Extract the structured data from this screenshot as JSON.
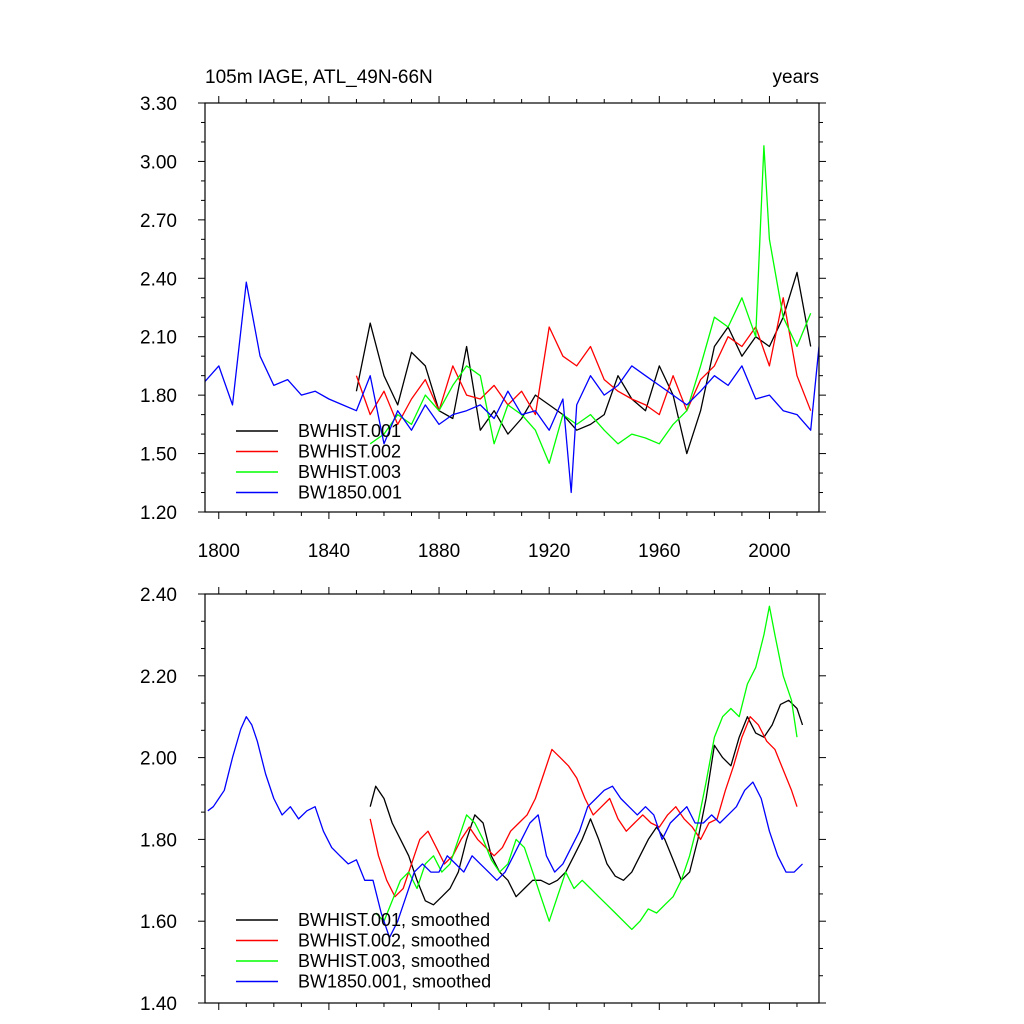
{
  "chart_data": [
    {
      "type": "line",
      "title": "105m IAGE, ATL_49N-66N",
      "units": "years",
      "xlim": [
        1795,
        2018
      ],
      "ylim": [
        1.2,
        3.3
      ],
      "xticks": [
        1800,
        1840,
        1880,
        1920,
        1960,
        2000
      ],
      "yticks": [
        1.2,
        1.5,
        1.8,
        2.1,
        2.4,
        2.7,
        3.0,
        3.3
      ],
      "xtick_labels": [
        "1800",
        "1840",
        "1880",
        "1920",
        "1960",
        "2000"
      ],
      "ytick_labels": [
        "1.20",
        "1.50",
        "1.80",
        "2.10",
        "2.40",
        "2.70",
        "3.00",
        "3.30"
      ],
      "legend": [
        "BWHIST.001",
        "BWHIST.002",
        "BWHIST.003",
        "BW1850.001"
      ],
      "series": [
        {
          "name": "BWHIST.001",
          "color": "#000000",
          "x": [
            1850,
            1855,
            1860,
            1865,
            1870,
            1875,
            1880,
            1885,
            1890,
            1895,
            1900,
            1905,
            1910,
            1915,
            1920,
            1925,
            1930,
            1935,
            1940,
            1945,
            1950,
            1955,
            1960,
            1965,
            1970,
            1975,
            1980,
            1985,
            1990,
            1995,
            2000,
            2005,
            2010,
            2015
          ],
          "values": [
            1.82,
            2.17,
            1.9,
            1.75,
            2.02,
            1.95,
            1.72,
            1.68,
            2.05,
            1.62,
            1.72,
            1.6,
            1.68,
            1.8,
            1.75,
            1.7,
            1.62,
            1.65,
            1.7,
            1.9,
            1.78,
            1.72,
            1.95,
            1.8,
            1.5,
            1.72,
            2.05,
            2.15,
            2.0,
            2.1,
            2.05,
            2.2,
            2.43,
            2.05
          ]
        },
        {
          "name": "BWHIST.002",
          "color": "#ff0000",
          "x": [
            1850,
            1855,
            1860,
            1865,
            1870,
            1875,
            1880,
            1885,
            1890,
            1895,
            1900,
            1905,
            1910,
            1915,
            1920,
            1925,
            1930,
            1935,
            1940,
            1945,
            1950,
            1955,
            1960,
            1965,
            1970,
            1975,
            1980,
            1985,
            1990,
            1995,
            2000,
            2005,
            2010,
            2015
          ],
          "values": [
            1.9,
            1.7,
            1.82,
            1.65,
            1.78,
            1.88,
            1.72,
            1.95,
            1.8,
            1.78,
            1.85,
            1.75,
            1.82,
            1.7,
            2.15,
            2.0,
            1.95,
            2.05,
            1.88,
            1.82,
            1.78,
            1.75,
            1.7,
            1.9,
            1.72,
            1.88,
            1.95,
            2.1,
            2.05,
            2.15,
            1.95,
            2.3,
            1.9,
            1.72
          ]
        },
        {
          "name": "BWHIST.003",
          "color": "#00ff00",
          "x": [
            1855,
            1860,
            1865,
            1870,
            1875,
            1880,
            1885,
            1890,
            1895,
            1900,
            1905,
            1910,
            1915,
            1920,
            1925,
            1930,
            1935,
            1940,
            1945,
            1950,
            1955,
            1960,
            1965,
            1970,
            1975,
            1980,
            1985,
            1990,
            1995,
            1998,
            2000,
            2005,
            2010,
            2015
          ],
          "values": [
            1.55,
            1.6,
            1.7,
            1.65,
            1.8,
            1.72,
            1.85,
            1.95,
            1.9,
            1.55,
            1.75,
            1.7,
            1.62,
            1.45,
            1.7,
            1.65,
            1.7,
            1.62,
            1.55,
            1.6,
            1.58,
            1.55,
            1.65,
            1.72,
            1.95,
            2.2,
            2.15,
            2.3,
            2.1,
            3.08,
            2.6,
            2.2,
            2.05,
            2.22
          ]
        },
        {
          "name": "BW1850.001",
          "color": "#0000ff",
          "x": [
            1795,
            1800,
            1805,
            1810,
            1815,
            1820,
            1825,
            1830,
            1835,
            1840,
            1845,
            1850,
            1855,
            1860,
            1865,
            1870,
            1875,
            1880,
            1885,
            1890,
            1895,
            1900,
            1905,
            1910,
            1915,
            1920,
            1925,
            1928,
            1930,
            1935,
            1940,
            1945,
            1950,
            1955,
            1960,
            1965,
            1970,
            1975,
            1980,
            1985,
            1990,
            1995,
            2000,
            2005,
            2010,
            2015,
            2018
          ],
          "values": [
            1.87,
            1.95,
            1.75,
            2.38,
            2.0,
            1.85,
            1.88,
            1.8,
            1.82,
            1.78,
            1.75,
            1.72,
            1.9,
            1.55,
            1.72,
            1.62,
            1.75,
            1.65,
            1.7,
            1.72,
            1.75,
            1.68,
            1.82,
            1.7,
            1.72,
            1.62,
            1.78,
            1.3,
            1.75,
            1.9,
            1.8,
            1.85,
            1.95,
            1.9,
            1.85,
            1.8,
            1.75,
            1.82,
            1.9,
            1.85,
            1.95,
            1.78,
            1.8,
            1.72,
            1.7,
            1.62,
            2.05
          ]
        }
      ]
    },
    {
      "type": "line",
      "xlim": [
        1795,
        2018
      ],
      "ylim": [
        1.4,
        2.4
      ],
      "xticks": [
        1800,
        1840,
        1880,
        1920,
        1960,
        2000
      ],
      "yticks": [
        1.4,
        1.6,
        1.8,
        2.0,
        2.2,
        2.4
      ],
      "ytick_labels": [
        "1.40",
        "1.60",
        "1.80",
        "2.00",
        "2.20",
        "2.40"
      ],
      "legend": [
        "BWHIST.001, smoothed",
        "BWHIST.002, smoothed",
        "BWHIST.003, smoothed",
        "BW1850.001, smoothed"
      ],
      "series": [
        {
          "name": "BWHIST.001, smoothed",
          "color": "#000000",
          "x": [
            1855,
            1857,
            1860,
            1863,
            1866,
            1869,
            1872,
            1875,
            1878,
            1881,
            1884,
            1887,
            1890,
            1893,
            1896,
            1899,
            1902,
            1905,
            1908,
            1911,
            1914,
            1917,
            1920,
            1923,
            1926,
            1929,
            1932,
            1935,
            1938,
            1941,
            1944,
            1947,
            1950,
            1953,
            1956,
            1959,
            1962,
            1965,
            1968,
            1971,
            1974,
            1977,
            1980,
            1983,
            1986,
            1989,
            1992,
            1995,
            1998,
            2001,
            2004,
            2007,
            2010,
            2012
          ],
          "values": [
            1.88,
            1.93,
            1.9,
            1.84,
            1.8,
            1.76,
            1.7,
            1.65,
            1.64,
            1.66,
            1.68,
            1.72,
            1.8,
            1.86,
            1.84,
            1.76,
            1.72,
            1.7,
            1.66,
            1.68,
            1.7,
            1.7,
            1.69,
            1.7,
            1.72,
            1.76,
            1.8,
            1.85,
            1.8,
            1.74,
            1.71,
            1.7,
            1.72,
            1.76,
            1.8,
            1.83,
            1.8,
            1.75,
            1.7,
            1.72,
            1.8,
            1.9,
            2.03,
            2.0,
            1.98,
            2.05,
            2.1,
            2.06,
            2.05,
            2.08,
            2.13,
            2.14,
            2.12,
            2.08
          ]
        },
        {
          "name": "BWHIST.002, smoothed",
          "color": "#ff0000",
          "x": [
            1855,
            1858,
            1861,
            1864,
            1867,
            1870,
            1873,
            1876,
            1879,
            1882,
            1885,
            1888,
            1891,
            1894,
            1897,
            1900,
            1903,
            1906,
            1909,
            1912,
            1915,
            1918,
            1921,
            1924,
            1927,
            1930,
            1933,
            1936,
            1939,
            1942,
            1945,
            1948,
            1951,
            1954,
            1957,
            1960,
            1963,
            1966,
            1969,
            1972,
            1975,
            1978,
            1981,
            1984,
            1987,
            1990,
            1993,
            1996,
            1999,
            2002,
            2005,
            2008,
            2010
          ],
          "values": [
            1.85,
            1.76,
            1.7,
            1.66,
            1.68,
            1.74,
            1.8,
            1.82,
            1.78,
            1.74,
            1.76,
            1.8,
            1.83,
            1.8,
            1.78,
            1.76,
            1.78,
            1.82,
            1.84,
            1.86,
            1.9,
            1.96,
            2.02,
            2.0,
            1.98,
            1.95,
            1.9,
            1.86,
            1.88,
            1.9,
            1.85,
            1.82,
            1.84,
            1.86,
            1.84,
            1.83,
            1.86,
            1.88,
            1.85,
            1.83,
            1.8,
            1.84,
            1.85,
            1.92,
            1.98,
            2.05,
            2.1,
            2.08,
            2.04,
            2.02,
            1.97,
            1.92,
            1.88
          ]
        },
        {
          "name": "BWHIST.003, smoothed",
          "color": "#00ff00",
          "x": [
            1857,
            1860,
            1863,
            1866,
            1869,
            1872,
            1875,
            1878,
            1881,
            1884,
            1887,
            1890,
            1893,
            1896,
            1899,
            1902,
            1905,
            1908,
            1911,
            1914,
            1917,
            1920,
            1923,
            1926,
            1929,
            1932,
            1935,
            1938,
            1941,
            1944,
            1947,
            1950,
            1953,
            1956,
            1959,
            1962,
            1965,
            1968,
            1971,
            1974,
            1977,
            1980,
            1983,
            1986,
            1989,
            1992,
            1995,
            1998,
            2000,
            2002,
            2005,
            2008,
            2010
          ],
          "values": [
            1.62,
            1.6,
            1.65,
            1.7,
            1.72,
            1.68,
            1.74,
            1.76,
            1.72,
            1.74,
            1.8,
            1.86,
            1.84,
            1.8,
            1.75,
            1.72,
            1.74,
            1.8,
            1.78,
            1.72,
            1.66,
            1.6,
            1.66,
            1.72,
            1.68,
            1.7,
            1.68,
            1.66,
            1.64,
            1.62,
            1.6,
            1.58,
            1.6,
            1.63,
            1.62,
            1.64,
            1.66,
            1.7,
            1.76,
            1.84,
            1.94,
            2.05,
            2.1,
            2.12,
            2.1,
            2.18,
            2.22,
            2.3,
            2.37,
            2.3,
            2.2,
            2.14,
            2.05
          ]
        },
        {
          "name": "BW1850.001, smoothed",
          "color": "#0000ff",
          "x": [
            1796,
            1798,
            1800,
            1802,
            1805,
            1808,
            1810,
            1812,
            1814,
            1817,
            1820,
            1823,
            1826,
            1829,
            1832,
            1835,
            1838,
            1841,
            1844,
            1847,
            1850,
            1853,
            1856,
            1859,
            1862,
            1865,
            1868,
            1871,
            1874,
            1877,
            1880,
            1883,
            1886,
            1889,
            1892,
            1895,
            1898,
            1901,
            1904,
            1907,
            1910,
            1913,
            1916,
            1919,
            1922,
            1925,
            1928,
            1931,
            1934,
            1937,
            1940,
            1943,
            1946,
            1949,
            1952,
            1955,
            1958,
            1961,
            1964,
            1967,
            1970,
            1973,
            1976,
            1979,
            1982,
            1985,
            1988,
            1991,
            1994,
            1997,
            2000,
            2003,
            2006,
            2009,
            2012
          ],
          "values": [
            1.87,
            1.88,
            1.9,
            1.92,
            2.0,
            2.07,
            2.1,
            2.08,
            2.04,
            1.96,
            1.9,
            1.86,
            1.88,
            1.85,
            1.87,
            1.88,
            1.82,
            1.78,
            1.76,
            1.74,
            1.75,
            1.7,
            1.7,
            1.62,
            1.56,
            1.6,
            1.66,
            1.72,
            1.74,
            1.72,
            1.72,
            1.76,
            1.74,
            1.72,
            1.76,
            1.74,
            1.72,
            1.7,
            1.72,
            1.76,
            1.8,
            1.84,
            1.86,
            1.76,
            1.72,
            1.74,
            1.78,
            1.82,
            1.88,
            1.9,
            1.92,
            1.93,
            1.9,
            1.88,
            1.86,
            1.88,
            1.86,
            1.8,
            1.84,
            1.86,
            1.88,
            1.84,
            1.84,
            1.86,
            1.84,
            1.86,
            1.88,
            1.92,
            1.94,
            1.9,
            1.82,
            1.76,
            1.72,
            1.72,
            1.74
          ]
        }
      ]
    }
  ]
}
